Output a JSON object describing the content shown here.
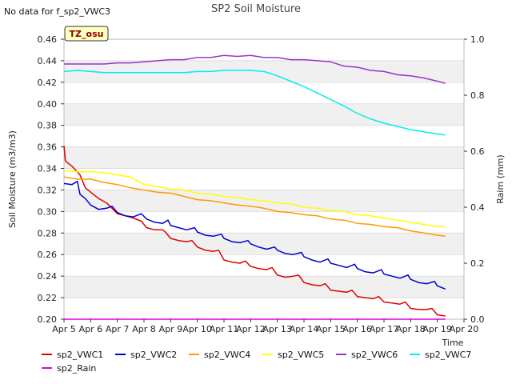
{
  "note": "No data for f_sp2_VWC3",
  "badge": "TZ_osu",
  "chart_data": {
    "type": "line",
    "title": "SP2 Soil Moisture",
    "xlabel": "Time",
    "ylabel": "Soil Moisture (m3/m3)",
    "y2label": "Raim (mm)",
    "ylim": [
      0.2,
      0.46
    ],
    "y2lim": [
      0.0,
      1.0
    ],
    "xlim": [
      5,
      20
    ],
    "x_ticks": [
      5,
      6,
      7,
      8,
      9,
      10,
      11,
      12,
      13,
      14,
      15,
      16,
      17,
      18,
      19,
      20
    ],
    "x_tick_labels": [
      "Apr 5",
      "Apr 6",
      "Apr 7",
      "Apr 8",
      "Apr 9",
      "Apr 10",
      "Apr 11",
      "Apr 12",
      "Apr 13",
      "Apr 14",
      "Apr 15",
      "Apr 16",
      "Apr 17",
      "Apr 18",
      "Apr 19",
      "Apr 20"
    ],
    "y_ticks": [
      0.2,
      0.22,
      0.24,
      0.26,
      0.28,
      0.3,
      0.32,
      0.34,
      0.36,
      0.38,
      0.4,
      0.42,
      0.44,
      0.46
    ],
    "y_tick_labels": [
      "0.20",
      "0.22",
      "0.24",
      "0.26",
      "0.28",
      "0.30",
      "0.32",
      "0.34",
      "0.36",
      "0.38",
      "0.40",
      "0.42",
      "0.44",
      "0.46"
    ],
    "y2_ticks": [
      0.0,
      0.2,
      0.4,
      0.6,
      0.8,
      1.0
    ],
    "y2_tick_labels": [
      "0.0",
      "0.2",
      "0.4",
      "0.6",
      "0.8",
      "1.0"
    ],
    "grid": "horizontal bands",
    "legend_position": "bottom",
    "series": [
      {
        "name": "sp2_VWC1",
        "color": "#dd0000",
        "axis": "left",
        "points": [
          [
            5.0,
            0.361
          ],
          [
            5.05,
            0.347
          ],
          [
            5.3,
            0.342
          ],
          [
            5.6,
            0.334
          ],
          [
            5.8,
            0.322
          ],
          [
            6.0,
            0.318
          ],
          [
            6.3,
            0.312
          ],
          [
            6.6,
            0.308
          ],
          [
            6.8,
            0.303
          ],
          [
            7.0,
            0.298
          ],
          [
            7.3,
            0.296
          ],
          [
            7.6,
            0.294
          ],
          [
            7.9,
            0.291
          ],
          [
            8.1,
            0.285
          ],
          [
            8.4,
            0.283
          ],
          [
            8.7,
            0.283
          ],
          [
            8.8,
            0.281
          ],
          [
            9.0,
            0.275
          ],
          [
            9.3,
            0.273
          ],
          [
            9.6,
            0.272
          ],
          [
            9.8,
            0.273
          ],
          [
            10.0,
            0.267
          ],
          [
            10.3,
            0.264
          ],
          [
            10.6,
            0.263
          ],
          [
            10.8,
            0.264
          ],
          [
            11.0,
            0.255
          ],
          [
            11.3,
            0.253
          ],
          [
            11.6,
            0.252
          ],
          [
            11.8,
            0.254
          ],
          [
            12.0,
            0.249
          ],
          [
            12.3,
            0.247
          ],
          [
            12.6,
            0.246
          ],
          [
            12.8,
            0.248
          ],
          [
            13.0,
            0.241
          ],
          [
            13.3,
            0.239
          ],
          [
            13.6,
            0.24
          ],
          [
            13.8,
            0.241
          ],
          [
            14.0,
            0.234
          ],
          [
            14.3,
            0.232
          ],
          [
            14.6,
            0.231
          ],
          [
            14.8,
            0.233
          ],
          [
            15.0,
            0.227
          ],
          [
            15.3,
            0.226
          ],
          [
            15.6,
            0.225
          ],
          [
            15.8,
            0.227
          ],
          [
            16.0,
            0.221
          ],
          [
            16.3,
            0.22
          ],
          [
            16.6,
            0.219
          ],
          [
            16.8,
            0.221
          ],
          [
            17.0,
            0.216
          ],
          [
            17.3,
            0.215
          ],
          [
            17.6,
            0.214
          ],
          [
            17.8,
            0.216
          ],
          [
            18.0,
            0.21
          ],
          [
            18.3,
            0.209
          ],
          [
            18.6,
            0.209
          ],
          [
            18.8,
            0.21
          ],
          [
            19.0,
            0.204
          ],
          [
            19.3,
            0.203
          ]
        ]
      },
      {
        "name": "sp2_VWC2",
        "color": "#0000cc",
        "axis": "left",
        "points": [
          [
            5.0,
            0.326
          ],
          [
            5.3,
            0.325
          ],
          [
            5.5,
            0.328
          ],
          [
            5.6,
            0.316
          ],
          [
            5.8,
            0.312
          ],
          [
            6.0,
            0.306
          ],
          [
            6.3,
            0.302
          ],
          [
            6.6,
            0.303
          ],
          [
            6.8,
            0.305
          ],
          [
            7.0,
            0.299
          ],
          [
            7.3,
            0.296
          ],
          [
            7.6,
            0.295
          ],
          [
            7.9,
            0.298
          ],
          [
            8.1,
            0.293
          ],
          [
            8.4,
            0.29
          ],
          [
            8.7,
            0.289
          ],
          [
            8.9,
            0.292
          ],
          [
            9.0,
            0.287
          ],
          [
            9.3,
            0.285
          ],
          [
            9.6,
            0.283
          ],
          [
            9.9,
            0.285
          ],
          [
            10.0,
            0.281
          ],
          [
            10.3,
            0.278
          ],
          [
            10.6,
            0.277
          ],
          [
            10.9,
            0.279
          ],
          [
            11.0,
            0.275
          ],
          [
            11.3,
            0.272
          ],
          [
            11.6,
            0.271
          ],
          [
            11.9,
            0.273
          ],
          [
            12.0,
            0.27
          ],
          [
            12.3,
            0.267
          ],
          [
            12.6,
            0.265
          ],
          [
            12.9,
            0.267
          ],
          [
            13.0,
            0.264
          ],
          [
            13.3,
            0.261
          ],
          [
            13.6,
            0.26
          ],
          [
            13.9,
            0.262
          ],
          [
            14.0,
            0.258
          ],
          [
            14.3,
            0.255
          ],
          [
            14.6,
            0.253
          ],
          [
            14.9,
            0.256
          ],
          [
            15.0,
            0.252
          ],
          [
            15.3,
            0.25
          ],
          [
            15.6,
            0.248
          ],
          [
            15.9,
            0.251
          ],
          [
            16.0,
            0.247
          ],
          [
            16.3,
            0.244
          ],
          [
            16.6,
            0.243
          ],
          [
            16.9,
            0.246
          ],
          [
            17.0,
            0.242
          ],
          [
            17.3,
            0.24
          ],
          [
            17.6,
            0.238
          ],
          [
            17.9,
            0.241
          ],
          [
            18.0,
            0.237
          ],
          [
            18.3,
            0.234
          ],
          [
            18.6,
            0.233
          ],
          [
            18.9,
            0.235
          ],
          [
            19.0,
            0.231
          ],
          [
            19.3,
            0.228
          ]
        ]
      },
      {
        "name": "sp2_VWC4",
        "color": "#ff9900",
        "axis": "left",
        "points": [
          [
            5.0,
            0.332
          ],
          [
            5.5,
            0.33
          ],
          [
            6.0,
            0.33
          ],
          [
            6.5,
            0.327
          ],
          [
            7.0,
            0.325
          ],
          [
            7.5,
            0.322
          ],
          [
            8.0,
            0.32
          ],
          [
            8.5,
            0.318
          ],
          [
            9.0,
            0.317
          ],
          [
            9.5,
            0.314
          ],
          [
            10.0,
            0.311
          ],
          [
            10.5,
            0.31
          ],
          [
            11.0,
            0.308
          ],
          [
            11.5,
            0.306
          ],
          [
            12.0,
            0.305
          ],
          [
            12.5,
            0.303
          ],
          [
            13.0,
            0.3
          ],
          [
            13.5,
            0.299
          ],
          [
            14.0,
            0.297
          ],
          [
            14.5,
            0.296
          ],
          [
            15.0,
            0.293
          ],
          [
            15.5,
            0.292
          ],
          [
            16.0,
            0.289
          ],
          [
            16.5,
            0.288
          ],
          [
            17.0,
            0.286
          ],
          [
            17.5,
            0.285
          ],
          [
            18.0,
            0.282
          ],
          [
            18.5,
            0.28
          ],
          [
            19.0,
            0.278
          ],
          [
            19.3,
            0.277
          ]
        ]
      },
      {
        "name": "sp2_VWC5",
        "color": "#ffff00",
        "axis": "left",
        "points": [
          [
            5.0,
            0.338
          ],
          [
            5.5,
            0.337
          ],
          [
            6.0,
            0.337
          ],
          [
            6.5,
            0.336
          ],
          [
            7.0,
            0.334
          ],
          [
            7.5,
            0.332
          ],
          [
            8.0,
            0.325
          ],
          [
            8.5,
            0.323
          ],
          [
            9.0,
            0.321
          ],
          [
            9.5,
            0.32
          ],
          [
            10.0,
            0.317
          ],
          [
            10.5,
            0.316
          ],
          [
            11.0,
            0.314
          ],
          [
            11.5,
            0.313
          ],
          [
            12.0,
            0.311
          ],
          [
            12.5,
            0.31
          ],
          [
            13.0,
            0.308
          ],
          [
            13.5,
            0.307
          ],
          [
            14.0,
            0.304
          ],
          [
            14.5,
            0.303
          ],
          [
            15.0,
            0.301
          ],
          [
            15.5,
            0.3
          ],
          [
            16.0,
            0.297
          ],
          [
            16.5,
            0.296
          ],
          [
            17.0,
            0.294
          ],
          [
            17.5,
            0.292
          ],
          [
            18.0,
            0.29
          ],
          [
            18.5,
            0.288
          ],
          [
            19.0,
            0.286
          ],
          [
            19.3,
            0.286
          ]
        ]
      },
      {
        "name": "sp2_VWC6",
        "color": "#9933cc",
        "axis": "left",
        "points": [
          [
            5.0,
            0.437
          ],
          [
            5.5,
            0.437
          ],
          [
            6.0,
            0.437
          ],
          [
            6.5,
            0.437
          ],
          [
            7.0,
            0.438
          ],
          [
            7.5,
            0.438
          ],
          [
            8.0,
            0.439
          ],
          [
            8.5,
            0.44
          ],
          [
            9.0,
            0.441
          ],
          [
            9.5,
            0.441
          ],
          [
            10.0,
            0.443
          ],
          [
            10.5,
            0.443
          ],
          [
            11.0,
            0.445
          ],
          [
            11.5,
            0.444
          ],
          [
            12.0,
            0.445
          ],
          [
            12.5,
            0.443
          ],
          [
            13.0,
            0.443
          ],
          [
            13.5,
            0.441
          ],
          [
            14.0,
            0.441
          ],
          [
            14.5,
            0.44
          ],
          [
            15.0,
            0.439
          ],
          [
            15.5,
            0.435
          ],
          [
            16.0,
            0.434
          ],
          [
            16.5,
            0.431
          ],
          [
            17.0,
            0.43
          ],
          [
            17.5,
            0.427
          ],
          [
            18.0,
            0.426
          ],
          [
            18.5,
            0.424
          ],
          [
            19.0,
            0.421
          ],
          [
            19.3,
            0.419
          ]
        ]
      },
      {
        "name": "sp2_VWC7",
        "color": "#00eeee",
        "axis": "left",
        "points": [
          [
            5.0,
            0.43
          ],
          [
            5.5,
            0.431
          ],
          [
            6.0,
            0.43
          ],
          [
            6.5,
            0.429
          ],
          [
            7.0,
            0.429
          ],
          [
            7.5,
            0.429
          ],
          [
            8.0,
            0.429
          ],
          [
            8.5,
            0.429
          ],
          [
            9.0,
            0.429
          ],
          [
            9.5,
            0.429
          ],
          [
            10.0,
            0.43
          ],
          [
            10.5,
            0.43
          ],
          [
            11.0,
            0.431
          ],
          [
            11.5,
            0.431
          ],
          [
            12.0,
            0.431
          ],
          [
            12.5,
            0.43
          ],
          [
            13.0,
            0.426
          ],
          [
            13.5,
            0.421
          ],
          [
            14.0,
            0.416
          ],
          [
            14.5,
            0.41
          ],
          [
            15.0,
            0.404
          ],
          [
            15.5,
            0.398
          ],
          [
            16.0,
            0.391
          ],
          [
            16.5,
            0.386
          ],
          [
            17.0,
            0.382
          ],
          [
            17.5,
            0.379
          ],
          [
            18.0,
            0.376
          ],
          [
            18.5,
            0.374
          ],
          [
            19.0,
            0.372
          ],
          [
            19.3,
            0.371
          ]
        ]
      },
      {
        "name": "sp2_Rain",
        "color": "#dd00dd",
        "axis": "right",
        "points": [
          [
            5.0,
            0.0
          ],
          [
            19.3,
            0.0
          ]
        ]
      }
    ]
  }
}
